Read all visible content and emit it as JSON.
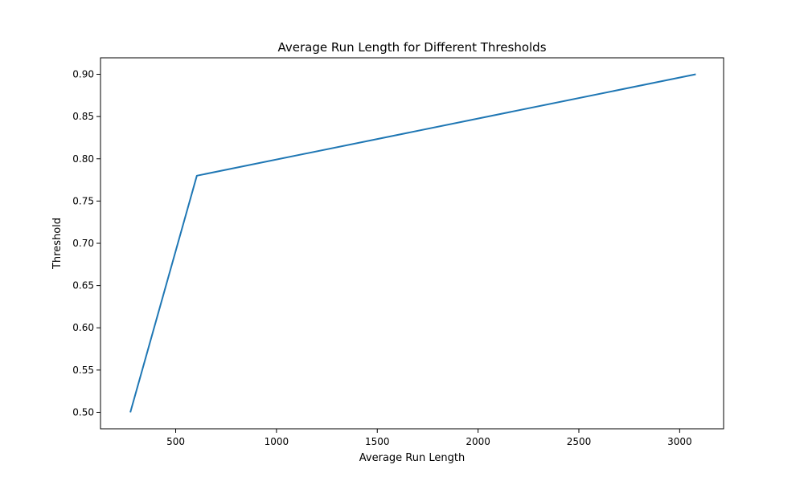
{
  "chart_data": {
    "type": "line",
    "title": "Average Run Length for Different Thresholds",
    "xlabel": "Average Run Length",
    "ylabel": "Threshold",
    "xlim": [
      127,
      3218
    ],
    "ylim": [
      0.4805,
      0.9195
    ],
    "x_ticks": [
      500,
      1000,
      1500,
      2000,
      2500,
      3000
    ],
    "x_tick_labels": [
      "500",
      "1000",
      "1500",
      "2000",
      "2500",
      "3000"
    ],
    "y_ticks": [
      0.5,
      0.55,
      0.6,
      0.65,
      0.7,
      0.75,
      0.8,
      0.85,
      0.9
    ],
    "y_tick_labels": [
      "0.50",
      "0.55",
      "0.60",
      "0.65",
      "0.70",
      "0.75",
      "0.80",
      "0.85",
      "0.90"
    ],
    "grid": false,
    "legend": "none",
    "series": [
      {
        "color": "#1f77b4",
        "x": [
          275,
          605,
          3080
        ],
        "y": [
          0.5,
          0.78,
          0.9
        ]
      }
    ]
  }
}
